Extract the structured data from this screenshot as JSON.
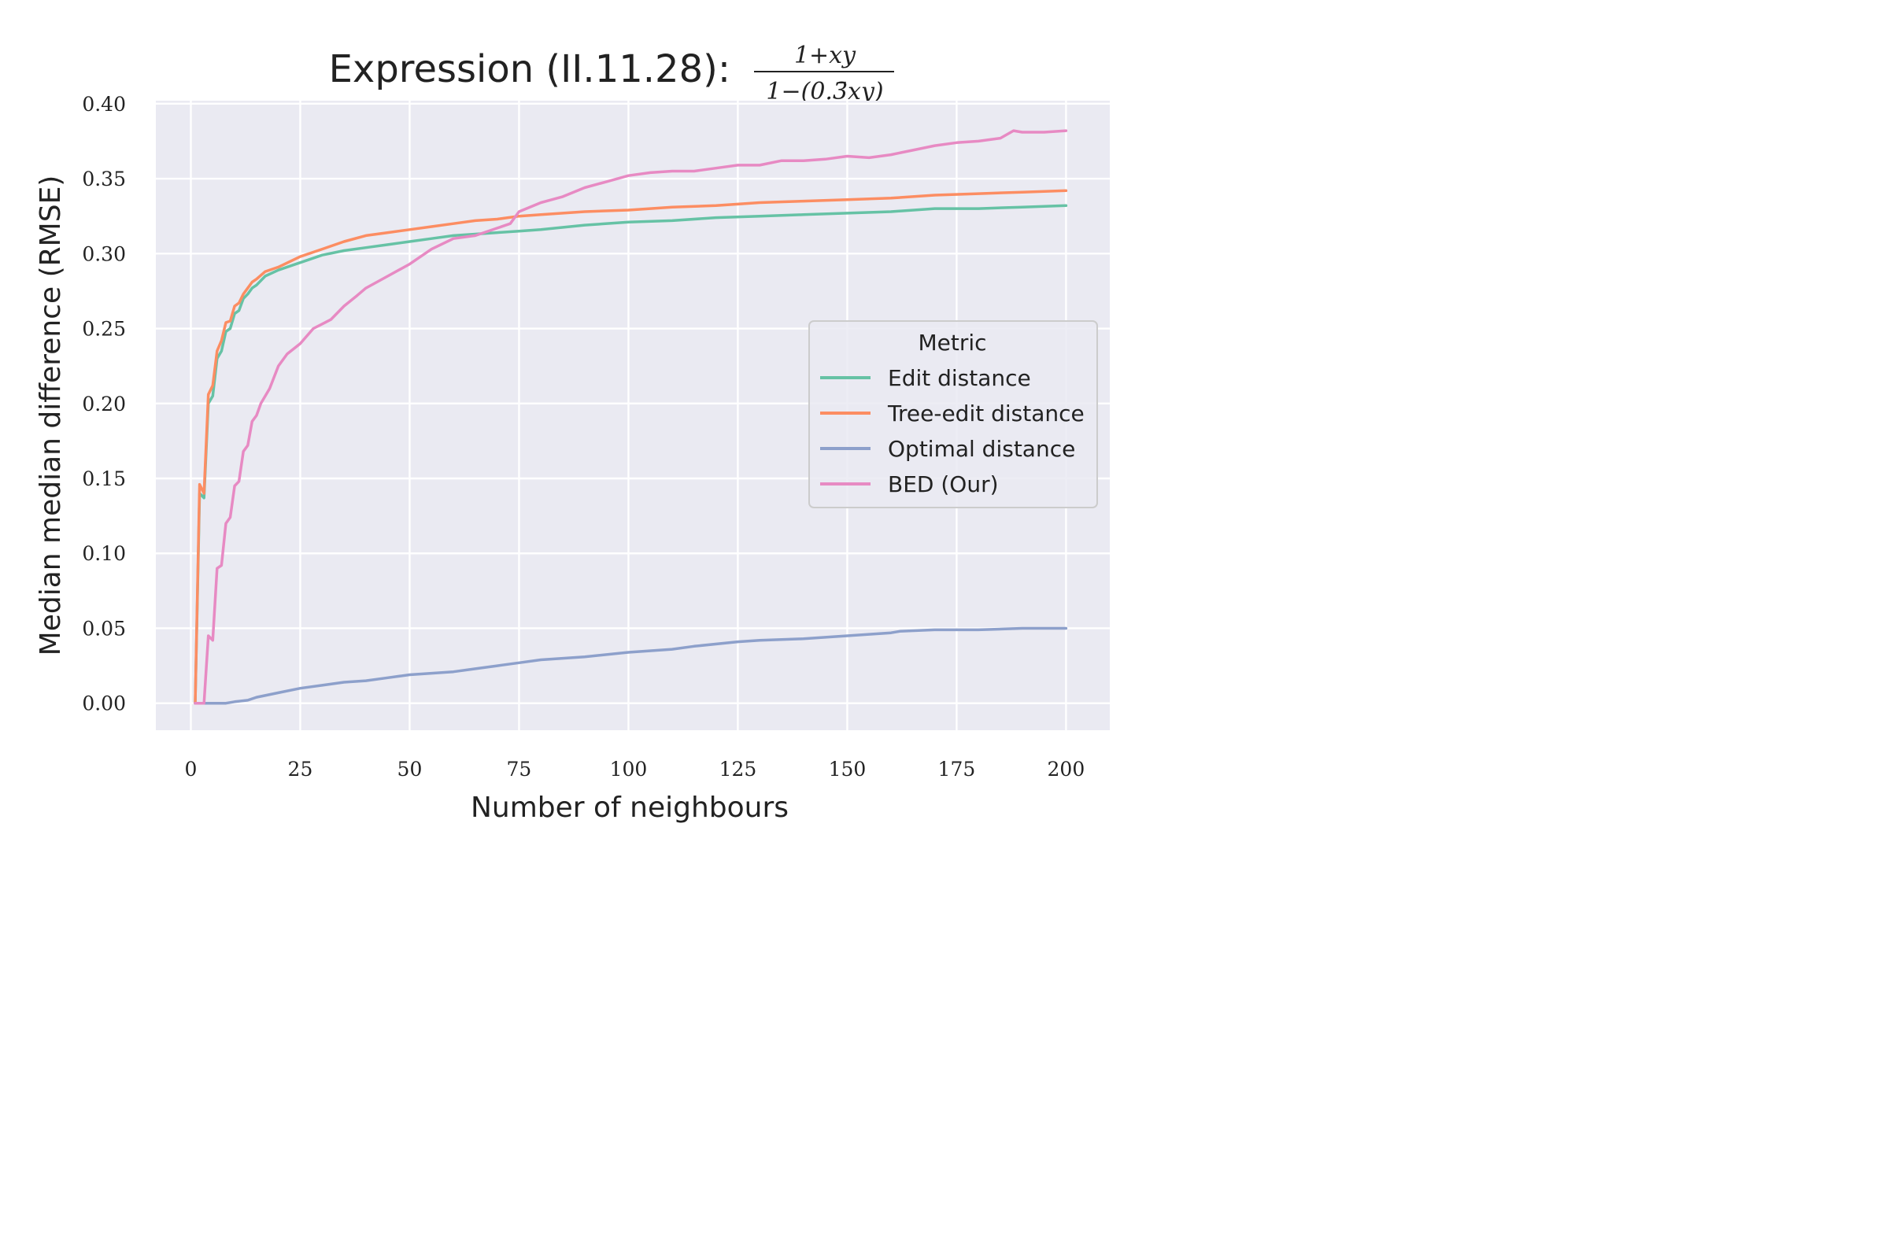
{
  "chart_data": {
    "type": "line",
    "title": "Expression (II.11.28):",
    "formula": {
      "numerator": "1+xy",
      "denominator": "1−(0.3̄xy)"
    },
    "xlabel": "Number of neighbours",
    "ylabel": "Median median difference (RMSE)",
    "xlim": [
      -8,
      210
    ],
    "ylim": [
      -0.018,
      0.402
    ],
    "xticks": [
      0,
      25,
      50,
      75,
      100,
      125,
      150,
      175,
      200
    ],
    "yticks": [
      0.0,
      0.05,
      0.1,
      0.15,
      0.2,
      0.25,
      0.3,
      0.35,
      0.4
    ],
    "ytick_labels": [
      "0.00",
      "0.05",
      "0.10",
      "0.15",
      "0.20",
      "0.25",
      "0.30",
      "0.35",
      "0.40"
    ],
    "grid": true,
    "legend": {
      "title": "Metric",
      "placement": "center-right"
    },
    "series": [
      {
        "name": "Edit distance",
        "color": "#66c2a5",
        "points": [
          [
            1,
            0.0
          ],
          [
            2,
            0.14
          ],
          [
            3,
            0.137
          ],
          [
            4,
            0.2
          ],
          [
            5,
            0.205
          ],
          [
            6,
            0.23
          ],
          [
            7,
            0.235
          ],
          [
            8,
            0.248
          ],
          [
            9,
            0.25
          ],
          [
            10,
            0.26
          ],
          [
            11,
            0.262
          ],
          [
            12,
            0.27
          ],
          [
            13,
            0.273
          ],
          [
            14,
            0.277
          ],
          [
            15,
            0.279
          ],
          [
            17,
            0.285
          ],
          [
            20,
            0.289
          ],
          [
            25,
            0.294
          ],
          [
            30,
            0.299
          ],
          [
            35,
            0.302
          ],
          [
            40,
            0.304
          ],
          [
            45,
            0.306
          ],
          [
            50,
            0.308
          ],
          [
            55,
            0.31
          ],
          [
            60,
            0.312
          ],
          [
            65,
            0.313
          ],
          [
            70,
            0.314
          ],
          [
            75,
            0.315
          ],
          [
            80,
            0.316
          ],
          [
            90,
            0.319
          ],
          [
            100,
            0.321
          ],
          [
            110,
            0.322
          ],
          [
            120,
            0.324
          ],
          [
            130,
            0.325
          ],
          [
            140,
            0.326
          ],
          [
            150,
            0.327
          ],
          [
            160,
            0.328
          ],
          [
            170,
            0.33
          ],
          [
            180,
            0.33
          ],
          [
            190,
            0.331
          ],
          [
            200,
            0.332
          ]
        ]
      },
      {
        "name": "Tree-edit distance",
        "color": "#fc8d62",
        "points": [
          [
            1,
            0.0
          ],
          [
            2,
            0.146
          ],
          [
            3,
            0.14
          ],
          [
            4,
            0.206
          ],
          [
            5,
            0.212
          ],
          [
            6,
            0.235
          ],
          [
            7,
            0.242
          ],
          [
            8,
            0.254
          ],
          [
            9,
            0.255
          ],
          [
            10,
            0.265
          ],
          [
            11,
            0.267
          ],
          [
            12,
            0.273
          ],
          [
            13,
            0.277
          ],
          [
            14,
            0.281
          ],
          [
            15,
            0.283
          ],
          [
            17,
            0.288
          ],
          [
            20,
            0.291
          ],
          [
            25,
            0.298
          ],
          [
            30,
            0.303
          ],
          [
            35,
            0.308
          ],
          [
            40,
            0.312
          ],
          [
            45,
            0.314
          ],
          [
            50,
            0.316
          ],
          [
            55,
            0.318
          ],
          [
            60,
            0.32
          ],
          [
            65,
            0.322
          ],
          [
            70,
            0.323
          ],
          [
            75,
            0.325
          ],
          [
            80,
            0.326
          ],
          [
            90,
            0.328
          ],
          [
            100,
            0.329
          ],
          [
            110,
            0.331
          ],
          [
            120,
            0.332
          ],
          [
            130,
            0.334
          ],
          [
            140,
            0.335
          ],
          [
            150,
            0.336
          ],
          [
            160,
            0.337
          ],
          [
            170,
            0.339
          ],
          [
            180,
            0.34
          ],
          [
            190,
            0.341
          ],
          [
            200,
            0.342
          ]
        ]
      },
      {
        "name": "Optimal distance",
        "color": "#8da0cb",
        "points": [
          [
            1,
            0.0
          ],
          [
            5,
            0.0
          ],
          [
            8,
            0.0
          ],
          [
            10,
            0.001
          ],
          [
            13,
            0.002
          ],
          [
            15,
            0.004
          ],
          [
            20,
            0.007
          ],
          [
            25,
            0.01
          ],
          [
            30,
            0.012
          ],
          [
            35,
            0.014
          ],
          [
            40,
            0.015
          ],
          [
            45,
            0.017
          ],
          [
            50,
            0.019
          ],
          [
            55,
            0.02
          ],
          [
            60,
            0.021
          ],
          [
            65,
            0.023
          ],
          [
            70,
            0.025
          ],
          [
            75,
            0.027
          ],
          [
            80,
            0.029
          ],
          [
            90,
            0.031
          ],
          [
            100,
            0.034
          ],
          [
            110,
            0.036
          ],
          [
            115,
            0.038
          ],
          [
            125,
            0.041
          ],
          [
            130,
            0.042
          ],
          [
            140,
            0.043
          ],
          [
            150,
            0.045
          ],
          [
            160,
            0.047
          ],
          [
            162,
            0.048
          ],
          [
            170,
            0.049
          ],
          [
            180,
            0.049
          ],
          [
            190,
            0.05
          ],
          [
            200,
            0.05
          ]
        ]
      },
      {
        "name": "BED (Our)",
        "color": "#e78ac3",
        "points": [
          [
            1,
            0.0
          ],
          [
            3,
            0.0
          ],
          [
            4,
            0.045
          ],
          [
            5,
            0.042
          ],
          [
            6,
            0.09
          ],
          [
            7,
            0.092
          ],
          [
            8,
            0.12
          ],
          [
            9,
            0.124
          ],
          [
            10,
            0.145
          ],
          [
            11,
            0.148
          ],
          [
            12,
            0.168
          ],
          [
            13,
            0.172
          ],
          [
            14,
            0.188
          ],
          [
            15,
            0.192
          ],
          [
            16,
            0.2
          ],
          [
            18,
            0.21
          ],
          [
            20,
            0.225
          ],
          [
            22,
            0.233
          ],
          [
            25,
            0.24
          ],
          [
            28,
            0.25
          ],
          [
            30,
            0.253
          ],
          [
            32,
            0.256
          ],
          [
            35,
            0.265
          ],
          [
            38,
            0.272
          ],
          [
            40,
            0.277
          ],
          [
            45,
            0.285
          ],
          [
            50,
            0.293
          ],
          [
            55,
            0.303
          ],
          [
            60,
            0.31
          ],
          [
            65,
            0.312
          ],
          [
            70,
            0.317
          ],
          [
            73,
            0.32
          ],
          [
            75,
            0.328
          ],
          [
            80,
            0.334
          ],
          [
            85,
            0.338
          ],
          [
            90,
            0.344
          ],
          [
            95,
            0.348
          ],
          [
            100,
            0.352
          ],
          [
            105,
            0.354
          ],
          [
            110,
            0.355
          ],
          [
            115,
            0.355
          ],
          [
            120,
            0.357
          ],
          [
            125,
            0.359
          ],
          [
            130,
            0.359
          ],
          [
            135,
            0.362
          ],
          [
            140,
            0.362
          ],
          [
            145,
            0.363
          ],
          [
            150,
            0.365
          ],
          [
            155,
            0.364
          ],
          [
            160,
            0.366
          ],
          [
            165,
            0.369
          ],
          [
            170,
            0.372
          ],
          [
            175,
            0.374
          ],
          [
            180,
            0.375
          ],
          [
            185,
            0.377
          ],
          [
            188,
            0.382
          ],
          [
            190,
            0.381
          ],
          [
            195,
            0.381
          ],
          [
            200,
            0.382
          ]
        ]
      }
    ]
  }
}
